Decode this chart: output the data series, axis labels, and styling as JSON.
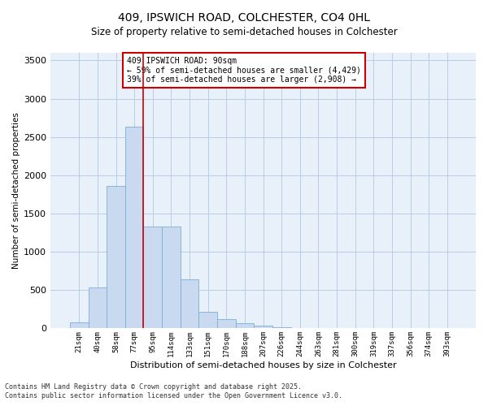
{
  "title_line1": "409, IPSWICH ROAD, COLCHESTER, CO4 0HL",
  "title_line2": "Size of property relative to semi-detached houses in Colchester",
  "xlabel": "Distribution of semi-detached houses by size in Colchester",
  "ylabel": "Number of semi-detached properties",
  "annotation_title": "409 IPSWICH ROAD: 90sqm",
  "annotation_line2": "← 59% of semi-detached houses are smaller (4,429)",
  "annotation_line3": "39% of semi-detached houses are larger (2,908) →",
  "footer_line1": "Contains HM Land Registry data © Crown copyright and database right 2025.",
  "footer_line2": "Contains public sector information licensed under the Open Government Licence v3.0.",
  "bar_color": "#c9daf0",
  "bar_edge_color": "#7bafd4",
  "vline_color": "#cc0000",
  "vline_x": 3.5,
  "background_color": "#ffffff",
  "plot_bg_color": "#e8f0fa",
  "grid_color": "#b8cce4",
  "categories": [
    "21sqm",
    "40sqm",
    "58sqm",
    "77sqm",
    "95sqm",
    "114sqm",
    "133sqm",
    "151sqm",
    "170sqm",
    "188sqm",
    "207sqm",
    "226sqm",
    "244sqm",
    "263sqm",
    "281sqm",
    "300sqm",
    "319sqm",
    "337sqm",
    "356sqm",
    "374sqm",
    "393sqm"
  ],
  "values": [
    80,
    540,
    1860,
    2640,
    1330,
    1330,
    640,
    220,
    120,
    70,
    40,
    10,
    0,
    0,
    0,
    0,
    0,
    0,
    0,
    0,
    0
  ],
  "ylim": [
    0,
    3600
  ],
  "yticks": [
    0,
    500,
    1000,
    1500,
    2000,
    2500,
    3000,
    3500
  ]
}
